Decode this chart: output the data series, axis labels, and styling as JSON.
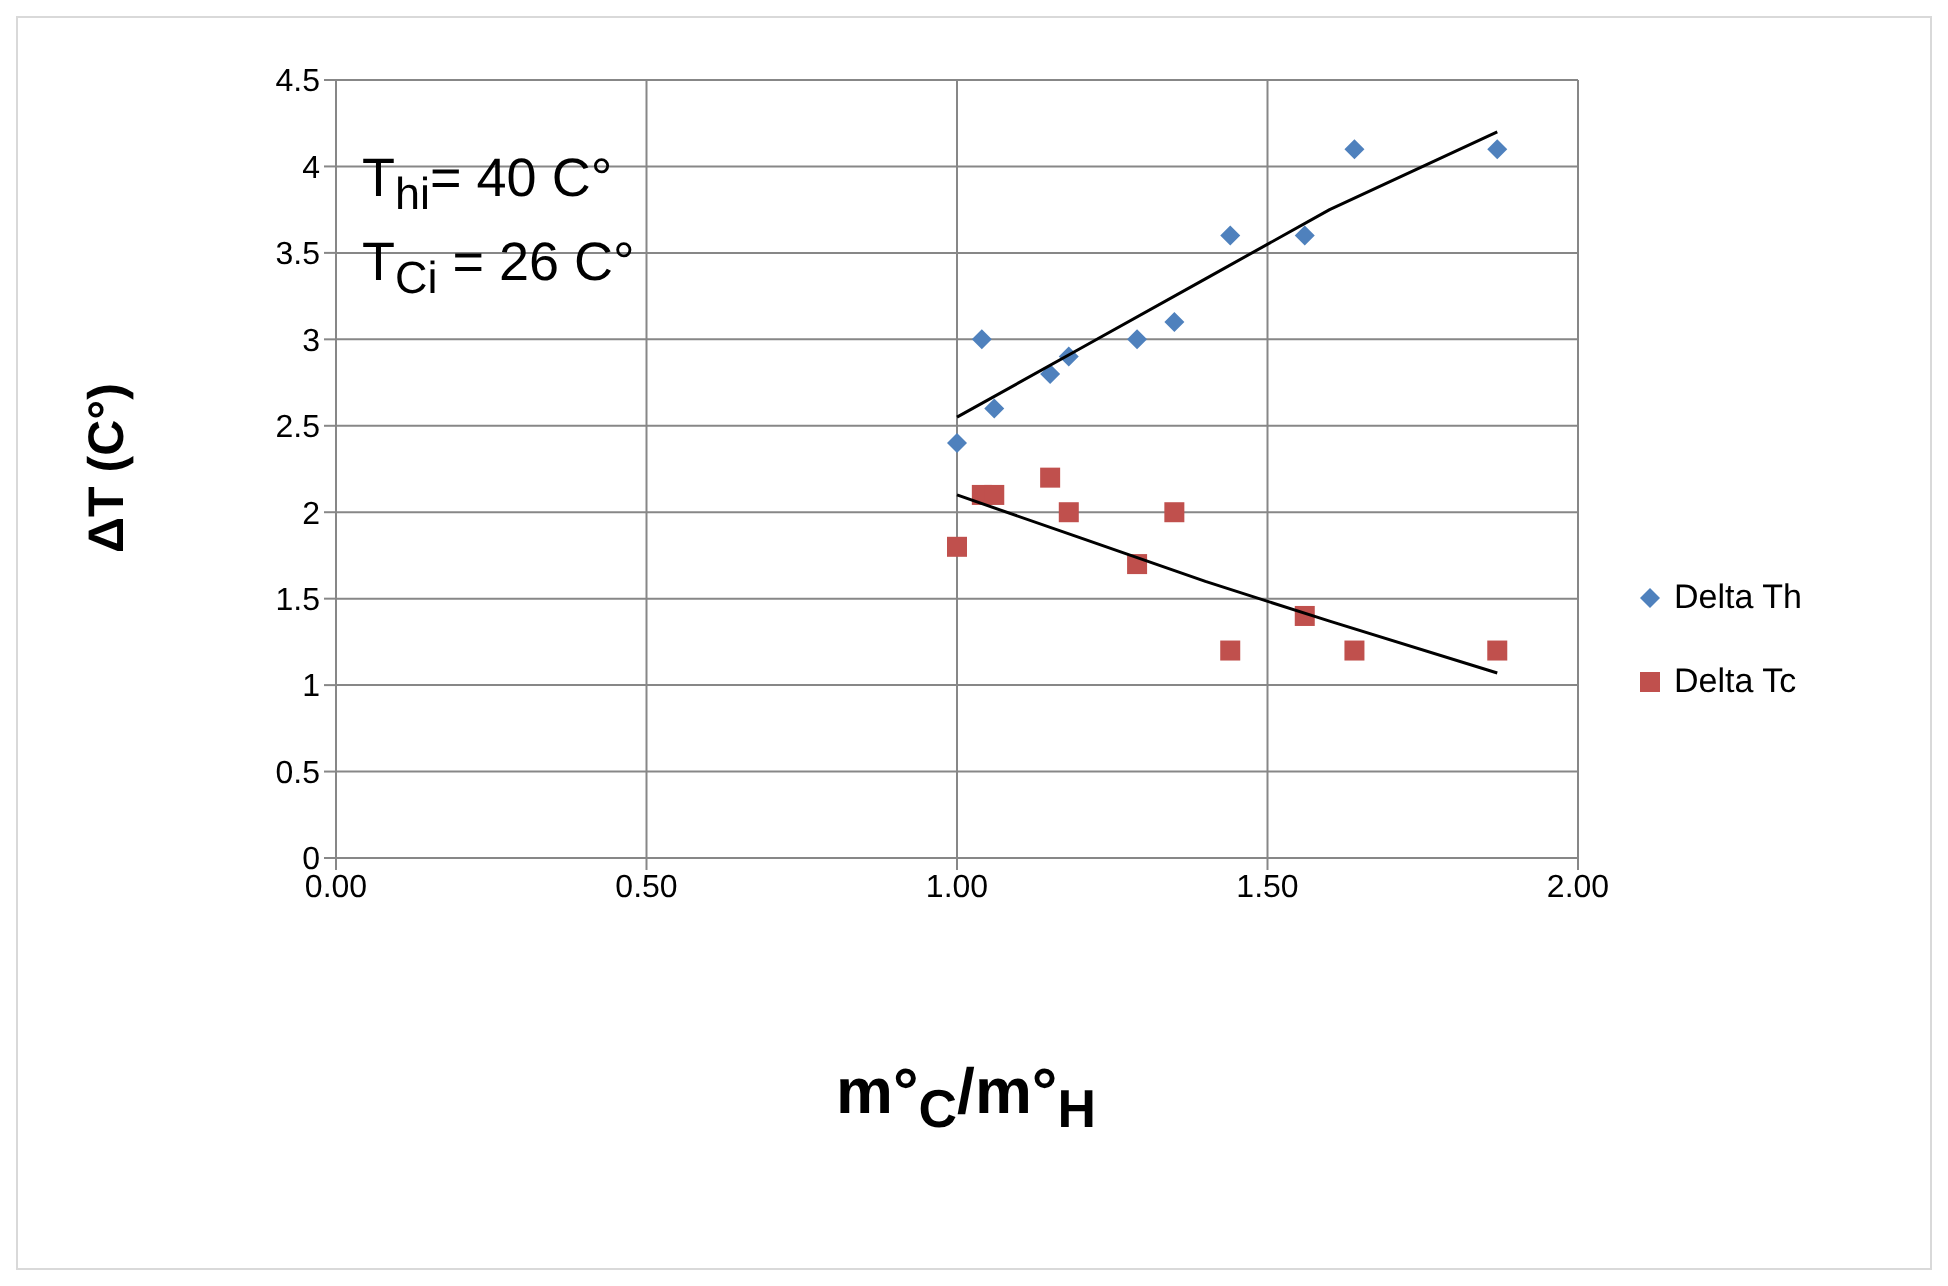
{
  "chart_data": {
    "type": "scatter",
    "xlabel": "m°$_{C}$/m°$_{H}$",
    "ylabel": "ΔT (C°)",
    "annotations": [
      "T$_{hi}$= 40 C°",
      "T$_{Ci}$ = 26 C°"
    ],
    "xlim": [
      0,
      2
    ],
    "xticks": [
      {
        "value": 0,
        "label": "0.00"
      },
      {
        "value": 0.5,
        "label": "0.50"
      },
      {
        "value": 1,
        "label": "1.00"
      },
      {
        "value": 1.5,
        "label": "1.50"
      },
      {
        "value": 2,
        "label": "2.00"
      }
    ],
    "ylim": [
      0,
      4.5
    ],
    "yticks": [
      0,
      0.5,
      1,
      1.5,
      2,
      2.5,
      3,
      3.5,
      4,
      4.5
    ],
    "grid": true,
    "legend": "right",
    "series": [
      {
        "name": "Delta Th",
        "marker": "diamond",
        "color": "#4f81bd",
        "x": [
          1.0,
          1.04,
          1.06,
          1.15,
          1.18,
          1.29,
          1.35,
          1.44,
          1.56,
          1.64,
          1.87
        ],
        "values": [
          2.4,
          3.0,
          2.6,
          2.8,
          2.9,
          3.0,
          3.1,
          3.6,
          3.6,
          4.1,
          4.1
        ]
      },
      {
        "name": "Delta Tc",
        "marker": "square",
        "color": "#c0504d",
        "x": [
          1.0,
          1.04,
          1.06,
          1.15,
          1.18,
          1.29,
          1.35,
          1.44,
          1.56,
          1.64,
          1.87
        ],
        "values": [
          1.8,
          2.1,
          2.1,
          2.2,
          2.0,
          1.7,
          2.0,
          1.2,
          1.4,
          1.2,
          1.2
        ]
      },
      {
        "type": "line",
        "marker": "none",
        "color": "#000000",
        "x": [
          1.0,
          1.2,
          1.4,
          1.6,
          1.87
        ],
        "values": [
          2.55,
          2.95,
          3.35,
          3.75,
          4.2
        ]
      },
      {
        "type": "line",
        "marker": "none",
        "color": "#000000",
        "x": [
          1.0,
          1.2,
          1.4,
          1.6,
          1.87
        ],
        "values": [
          2.1,
          1.85,
          1.6,
          1.37,
          1.07
        ]
      }
    ]
  }
}
